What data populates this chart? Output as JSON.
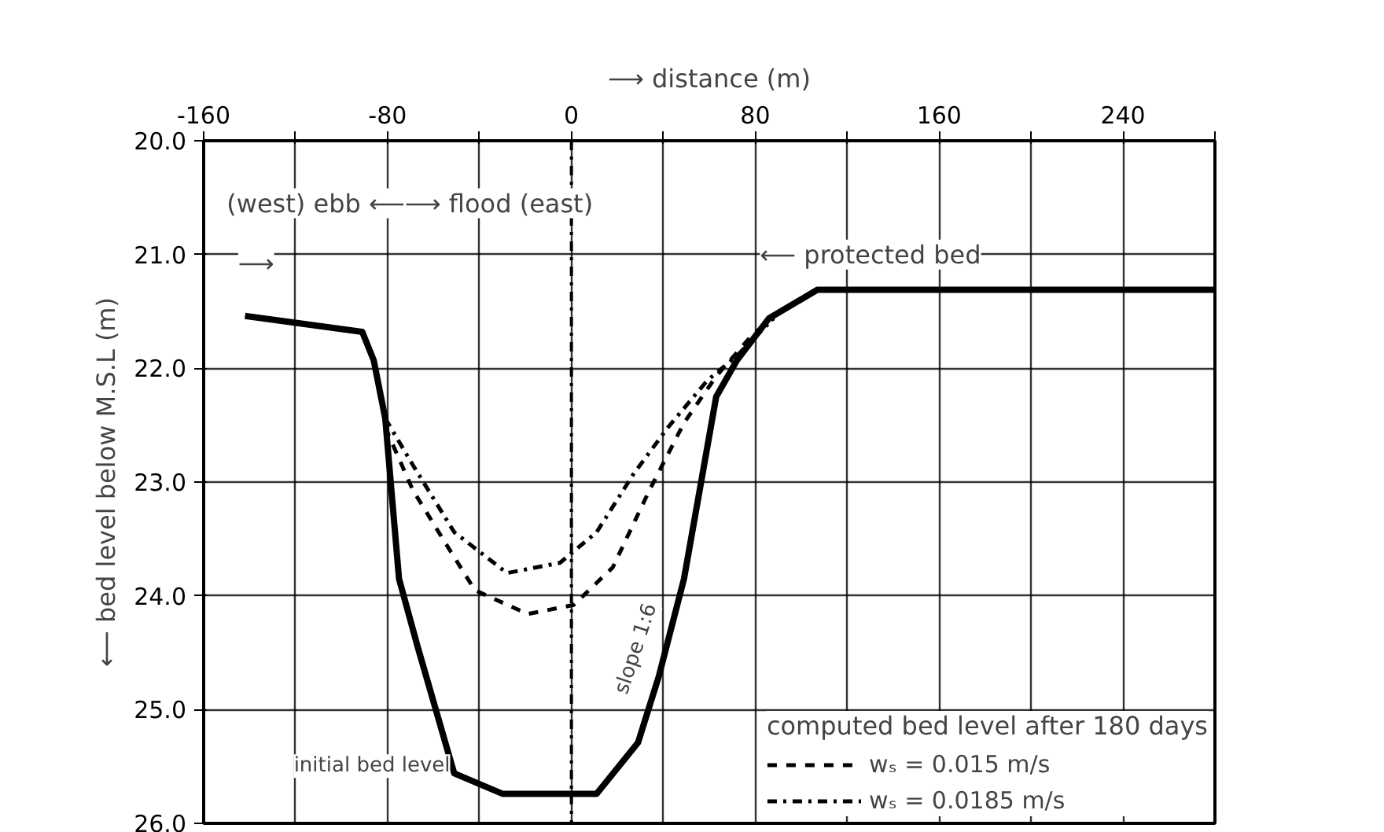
{
  "chart_data": {
    "type": "line",
    "xlabel": "⟶ distance (m)",
    "ylabel": "⟵ bed level below M.S.L (m)",
    "legend_title": "computed bed level after 180 days",
    "xlim": [
      -160,
      280
    ],
    "ylim": [
      26.0,
      20.0
    ],
    "xticks": [
      -160,
      {
        "value": -120,
        "label": null
      },
      -80,
      {
        "value": -40,
        "label": null
      },
      0,
      {
        "value": 40,
        "label": null
      },
      80,
      {
        "value": 120,
        "label": null
      },
      160,
      {
        "value": 200,
        "label": null
      },
      240,
      {
        "value": 280,
        "label": null
      }
    ],
    "yticks": [
      {
        "value": 20,
        "label": "20.0"
      },
      {
        "value": 21,
        "label": "21.0"
      },
      {
        "value": 22,
        "label": "22.0"
      },
      {
        "value": 23,
        "label": "23.0"
      },
      {
        "value": 24,
        "label": "24.0"
      },
      {
        "value": 25,
        "label": "25.0"
      },
      {
        "value": 26,
        "label": "26.0"
      }
    ],
    "grid": true,
    "legend": "bottom right",
    "marker": "none",
    "series": [
      {
        "color": "#000000",
        "line_style": "solid",
        "x": [
          -142,
          -91,
          -86,
          -81,
          -75,
          -67,
          -51,
          -30,
          11,
          29,
          38,
          49,
          63,
          72,
          86,
          107,
          280
        ],
        "values": [
          21.54,
          21.68,
          21.93,
          22.44,
          23.85,
          24.44,
          25.56,
          25.74,
          25.74,
          25.29,
          24.71,
          23.85,
          22.25,
          21.93,
          21.56,
          21.31,
          21.31
        ]
      },
      {
        "name": "wₛ = 0.015 m/s",
        "color": "#000000",
        "line_style": "dashed",
        "x": [
          -81,
          -69,
          -55,
          -42,
          -19,
          1,
          18,
          34,
          49,
          63,
          79,
          88
        ],
        "values": [
          22.52,
          23.07,
          23.53,
          23.95,
          24.16,
          24.08,
          23.75,
          23.07,
          22.48,
          22.07,
          21.7,
          21.56
        ]
      },
      {
        "name": "wₛ = 0.0185 m/s",
        "color": "#000000",
        "line_style": "dashdot",
        "x": [
          -81,
          -69,
          -51,
          -28,
          -5,
          11,
          27,
          42,
          59,
          72,
          88
        ],
        "values": [
          22.44,
          22.85,
          23.44,
          23.8,
          23.71,
          23.44,
          22.93,
          22.52,
          22.11,
          21.89,
          21.56
        ]
      }
    ],
    "ref_lines": [
      {
        "axis": "x",
        "value": 0,
        "label": null,
        "color": "#000000",
        "line_style": "dashdot"
      }
    ],
    "annotations": [
      "(west) ebb ⟵⟶ flood (east)",
      "⟵ protected bed",
      "⟶",
      {
        "text": "slope 1:6",
        "x": 40,
        "y": 24.5
      },
      {
        "text": "initial bed level",
        "x": -50,
        "y": 25.6
      }
    ]
  }
}
